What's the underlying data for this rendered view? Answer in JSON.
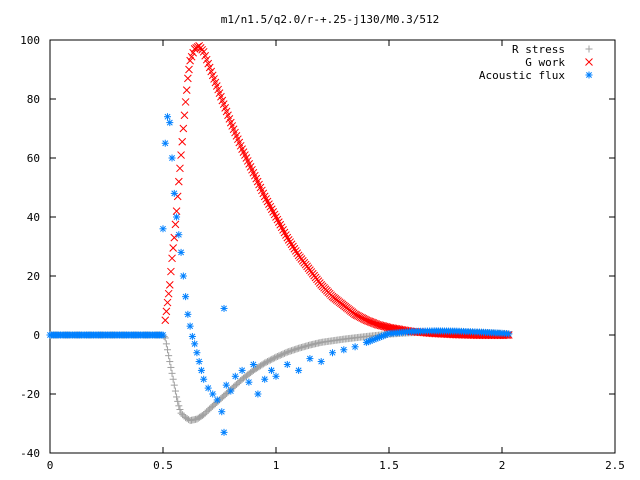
{
  "chart_data": {
    "type": "scatter",
    "title": "m1/n1.5/q2.0/r-+.25-j130/M0.3/512",
    "xlabel": "",
    "ylabel": "",
    "xlim": [
      0,
      2.5
    ],
    "ylim": [
      -40,
      100
    ],
    "xticks": [
      0,
      0.5,
      1,
      1.5,
      2,
      2.5
    ],
    "yticks": [
      -40,
      -20,
      0,
      20,
      40,
      60,
      80,
      100
    ],
    "grid": false,
    "legend_position": "top-right",
    "series": [
      {
        "name": "R stress",
        "marker": "plus",
        "color": "#a0a0a0",
        "points": [
          [
            0,
            0
          ],
          [
            0.1,
            0
          ],
          [
            0.2,
            0
          ],
          [
            0.3,
            0
          ],
          [
            0.4,
            0
          ],
          [
            0.5,
            0
          ],
          [
            0.51,
            -1
          ],
          [
            0.52,
            -5
          ],
          [
            0.53,
            -9
          ],
          [
            0.54,
            -13
          ],
          [
            0.55,
            -17
          ],
          [
            0.56,
            -21
          ],
          [
            0.57,
            -24
          ],
          [
            0.58,
            -26.5
          ],
          [
            0.6,
            -28
          ],
          [
            0.62,
            -29
          ],
          [
            0.65,
            -28.5
          ],
          [
            0.68,
            -27
          ],
          [
            0.7,
            -25.5
          ],
          [
            0.75,
            -22
          ],
          [
            0.8,
            -18.5
          ],
          [
            0.85,
            -15
          ],
          [
            0.9,
            -12
          ],
          [
            0.95,
            -9.5
          ],
          [
            1.0,
            -7.5
          ],
          [
            1.05,
            -5.8
          ],
          [
            1.1,
            -4.5
          ],
          [
            1.15,
            -3.4
          ],
          [
            1.2,
            -2.5
          ],
          [
            1.3,
            -1.4
          ],
          [
            1.4,
            -0.5
          ],
          [
            1.5,
            0.3
          ],
          [
            1.6,
            0.8
          ],
          [
            1.7,
            1.0
          ],
          [
            1.8,
            1.0
          ],
          [
            1.9,
            0.8
          ],
          [
            2.0,
            0.5
          ],
          [
            2.03,
            0.3
          ]
        ]
      },
      {
        "name": "G work",
        "marker": "cross",
        "color": "#ff0000",
        "points": [
          [
            0.51,
            5
          ],
          [
            0.52,
            11
          ],
          [
            0.53,
            17
          ],
          [
            0.54,
            26
          ],
          [
            0.55,
            33
          ],
          [
            0.56,
            42
          ],
          [
            0.57,
            52
          ],
          [
            0.58,
            61
          ],
          [
            0.59,
            70
          ],
          [
            0.6,
            79
          ],
          [
            0.61,
            87
          ],
          [
            0.62,
            93
          ],
          [
            0.64,
            97
          ],
          [
            0.66,
            98
          ],
          [
            0.68,
            96
          ],
          [
            0.7,
            92
          ],
          [
            0.72,
            88
          ],
          [
            0.75,
            82
          ],
          [
            0.8,
            72
          ],
          [
            0.85,
            63
          ],
          [
            0.9,
            55
          ],
          [
            0.95,
            47
          ],
          [
            1.0,
            40
          ],
          [
            1.05,
            33
          ],
          [
            1.1,
            27
          ],
          [
            1.15,
            22
          ],
          [
            1.2,
            17
          ],
          [
            1.25,
            13
          ],
          [
            1.3,
            10
          ],
          [
            1.35,
            7
          ],
          [
            1.4,
            5
          ],
          [
            1.45,
            3.5
          ],
          [
            1.5,
            2.5
          ],
          [
            1.6,
            1.2
          ],
          [
            1.7,
            0.5
          ],
          [
            1.8,
            0.1
          ],
          [
            1.9,
            -0.1
          ],
          [
            2.0,
            -0.1
          ],
          [
            2.03,
            0
          ]
        ]
      },
      {
        "name": "Acoustic flux",
        "marker": "star",
        "color": "#0080ff",
        "points": [
          [
            0,
            0
          ],
          [
            0.1,
            0
          ],
          [
            0.2,
            0
          ],
          [
            0.3,
            0
          ],
          [
            0.4,
            0
          ],
          [
            0.5,
            0
          ],
          [
            0.5,
            36
          ],
          [
            0.51,
            65
          ],
          [
            0.52,
            74
          ],
          [
            0.53,
            72
          ],
          [
            0.54,
            60
          ],
          [
            0.55,
            48
          ],
          [
            0.56,
            40
          ],
          [
            0.57,
            34
          ],
          [
            0.58,
            28
          ],
          [
            0.59,
            20
          ],
          [
            0.6,
            13
          ],
          [
            0.61,
            7
          ],
          [
            0.62,
            3
          ],
          [
            0.63,
            -0.5
          ],
          [
            0.64,
            -3
          ],
          [
            0.65,
            -6
          ],
          [
            0.66,
            -9
          ],
          [
            0.67,
            -12
          ],
          [
            0.68,
            -15
          ],
          [
            0.7,
            -18
          ],
          [
            0.72,
            -20
          ],
          [
            0.74,
            -22
          ],
          [
            0.76,
            -26
          ],
          [
            0.77,
            -33
          ],
          [
            0.77,
            9
          ],
          [
            0.78,
            -17
          ],
          [
            0.8,
            -19
          ],
          [
            0.82,
            -14
          ],
          [
            0.85,
            -12
          ],
          [
            0.88,
            -16
          ],
          [
            0.9,
            -10
          ],
          [
            0.92,
            -20
          ],
          [
            0.95,
            -15
          ],
          [
            0.98,
            -12
          ],
          [
            1.0,
            -14
          ],
          [
            1.05,
            -10
          ],
          [
            1.1,
            -12
          ],
          [
            1.15,
            -8
          ],
          [
            1.2,
            -9
          ],
          [
            1.25,
            -6
          ],
          [
            1.3,
            -5
          ],
          [
            1.35,
            -4
          ],
          [
            1.4,
            -2.5
          ],
          [
            1.45,
            -1
          ],
          [
            1.5,
            0.5
          ],
          [
            1.6,
            1.2
          ],
          [
            1.7,
            1.4
          ],
          [
            1.8,
            1.3
          ],
          [
            1.9,
            1.0
          ],
          [
            2.0,
            0.6
          ],
          [
            2.03,
            0.4
          ]
        ]
      }
    ]
  }
}
